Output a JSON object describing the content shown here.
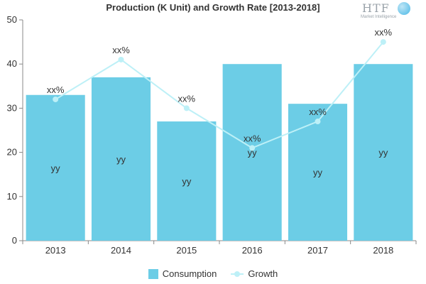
{
  "title": "Production (K Unit) and Growth Rate [2013-2018]",
  "logo": {
    "mark": "HTF",
    "sub": "Market Intelligence"
  },
  "legend": {
    "bar_label": "Consumption",
    "line_label": "Growth"
  },
  "colors": {
    "bar": "#6ccde6",
    "line": "#bdf0f7",
    "axis": "#888888",
    "grid": "#dddddd"
  },
  "chart_data": {
    "type": "bar",
    "categories": [
      "2013",
      "2014",
      "2015",
      "2016",
      "2017",
      "2018"
    ],
    "ylim": [
      0,
      50
    ],
    "yticks": [
      0,
      10,
      20,
      30,
      40,
      50
    ],
    "series": [
      {
        "name": "Consumption",
        "type": "bar",
        "values": [
          33,
          37,
          27,
          40,
          31,
          40
        ],
        "labels": [
          "yy",
          "yy",
          "yy",
          "yy",
          "yy",
          "yy"
        ]
      },
      {
        "name": "Growth",
        "type": "line",
        "values": [
          32,
          41,
          30,
          21,
          27,
          45
        ],
        "labels": [
          "xx%",
          "xx%",
          "xx%",
          "xx%",
          "xx%",
          "xx%"
        ]
      }
    ]
  }
}
